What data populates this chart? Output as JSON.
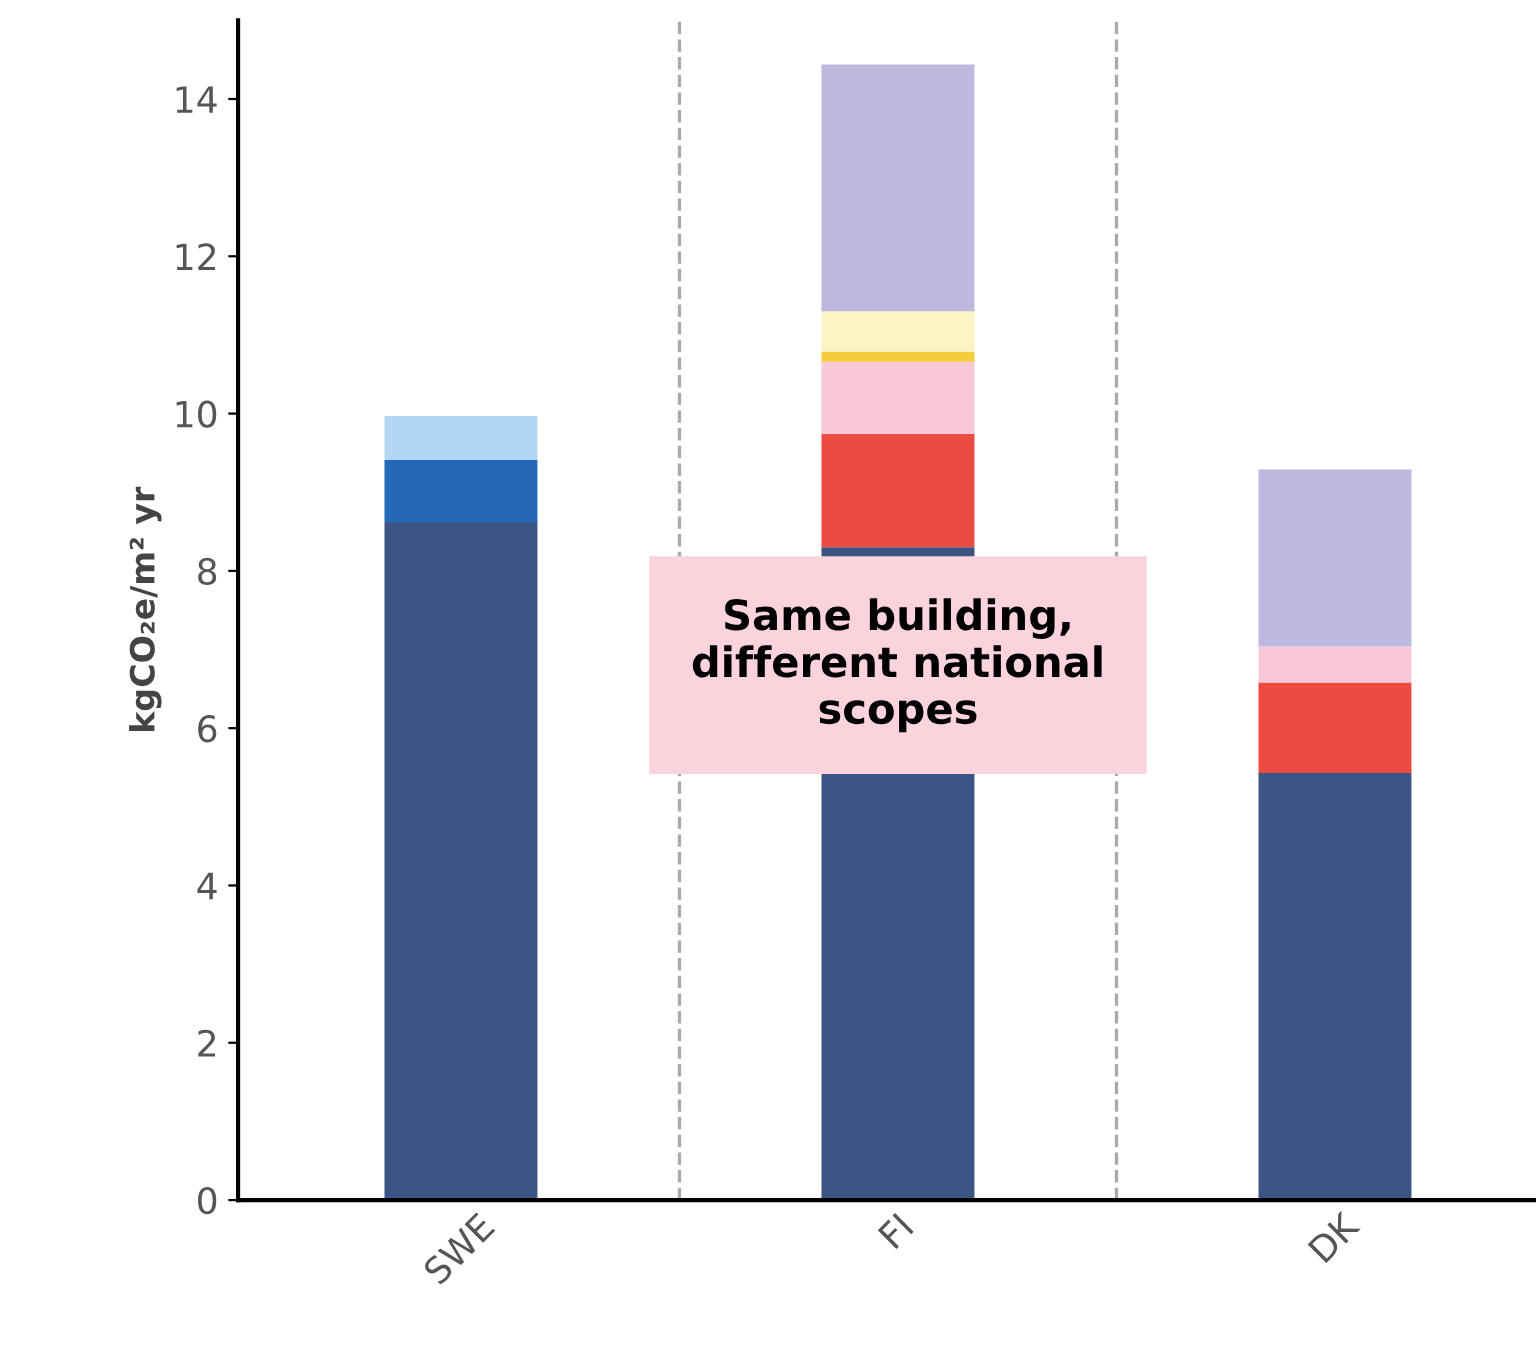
{
  "chart_data": {
    "type": "bar",
    "stacked": true,
    "ylabel": "kgCO₂e/m² yr",
    "categories": [
      "SWE",
      "FI",
      "DK"
    ],
    "series": [
      {
        "color": "#3d5585",
        "values": [
          8.62,
          8.3,
          5.43
        ]
      },
      {
        "color": "#2469b8",
        "values": [
          0.79,
          null,
          null
        ]
      },
      {
        "color": "#b3d7f2",
        "values": [
          0.56,
          null,
          null
        ]
      },
      {
        "color": "#eb4b40",
        "values": [
          null,
          1.44,
          1.15
        ]
      },
      {
        "color": "#f8c7d8",
        "values": [
          null,
          0.92,
          0.46
        ]
      },
      {
        "color": "#f5cc3a",
        "values": [
          null,
          0.13,
          null
        ]
      },
      {
        "color": "#fdf3c4",
        "values": [
          null,
          0.51,
          null
        ]
      },
      {
        "color": "#bdb9de",
        "values": [
          null,
          3.14,
          2.25
        ]
      }
    ],
    "ylim": [
      0,
      15
    ],
    "yticks": [
      0,
      2,
      4,
      6,
      8,
      10,
      12,
      14
    ],
    "grid": false,
    "legend": false,
    "annotations": [
      "Same building,\ndifferent national\nscopes"
    ]
  }
}
